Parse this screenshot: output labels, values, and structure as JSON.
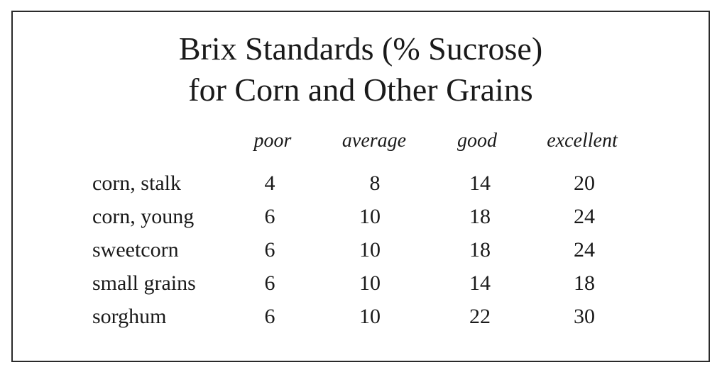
{
  "title": {
    "line1": "Brix Standards (% Sucrose)",
    "line2": "for Corn and Other Grains"
  },
  "columns": [
    "poor",
    "average",
    "good",
    "excellent"
  ],
  "rows": [
    {
      "label": "corn, stalk",
      "values": [
        "4",
        "8",
        "14",
        "20"
      ]
    },
    {
      "label": "corn, young",
      "values": [
        "6",
        "10",
        "18",
        "24"
      ]
    },
    {
      "label": "sweetcorn",
      "values": [
        "6",
        "10",
        "18",
        "24"
      ]
    },
    {
      "label": "small grains",
      "values": [
        "6",
        "10",
        "14",
        "18"
      ]
    },
    {
      "label": "sorghum",
      "values": [
        "6",
        "10",
        "22",
        "30"
      ]
    }
  ]
}
